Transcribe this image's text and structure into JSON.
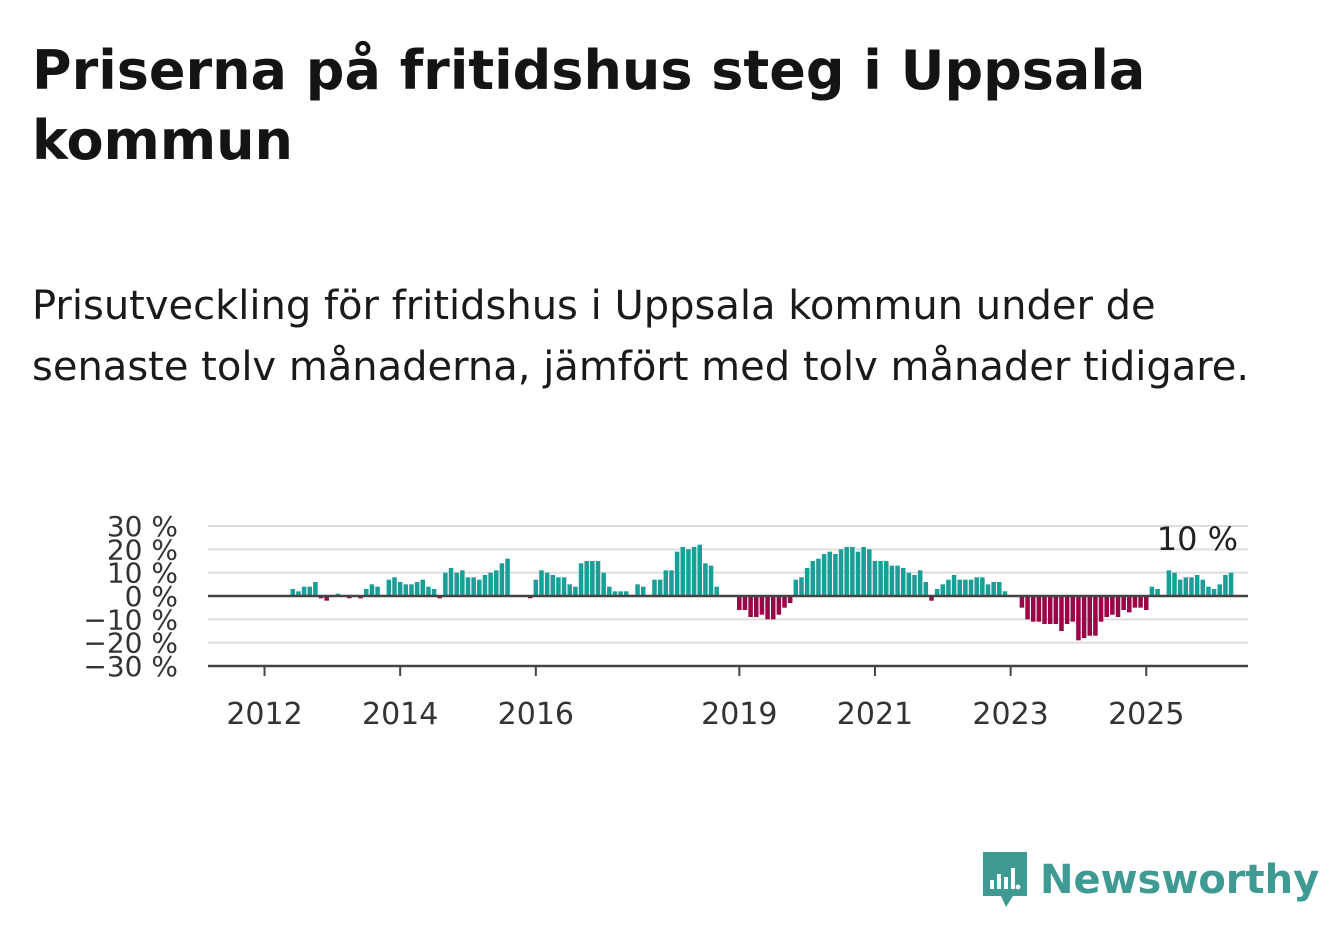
{
  "title": "Priserna på fritidshus steg i Uppsala kommun",
  "subtitle": "Prisutveckling för fritidshus i Uppsala kommun under de senaste tolv månaderna, jämfört med tolv månader tidigare.",
  "brand": {
    "name": "Newsworthy",
    "logo_icon": "bar-chart-speech-bubble-icon"
  },
  "colors": {
    "positive": "#1a9e98",
    "negative": "#990546",
    "gridline": "#dddddd",
    "axis": "#444444",
    "brand": "#3f9a93"
  },
  "chart_data": {
    "type": "bar",
    "title": "Priserna på fritidshus steg i Uppsala kommun",
    "subtitle": "Prisutveckling för fritidshus i Uppsala kommun under de senaste tolv månaderna, jämfört med tolv månader tidigare.",
    "xlabel": "",
    "ylabel": "",
    "ylim": [
      -30,
      30
    ],
    "y_ticks": [
      30,
      20,
      10,
      0,
      -10,
      -20,
      -30
    ],
    "y_tick_labels": [
      "30 %",
      "20 %",
      "10 %",
      "0 %",
      "−10 %",
      "−20 %",
      "−30 %"
    ],
    "x_ticks": [
      {
        "label": "2012",
        "date": "2012-01"
      },
      {
        "label": "2014",
        "date": "2014-01"
      },
      {
        "label": "2016",
        "date": "2016-01"
      },
      {
        "label": "2019",
        "date": "2019-01"
      },
      {
        "label": "2021",
        "date": "2021-01"
      },
      {
        "label": "2023",
        "date": "2023-01"
      },
      {
        "label": "2025",
        "date": "2025-01"
      }
    ],
    "x_range": [
      "2011-03",
      "2026-07"
    ],
    "grid": true,
    "last_value_label": "10 %",
    "first_month": "2012-01",
    "values": [
      null,
      null,
      null,
      null,
      null,
      3,
      2,
      4,
      4,
      6,
      -1,
      -2,
      0,
      1,
      0,
      -1,
      0,
      -1,
      3,
      5,
      4,
      0,
      7,
      8,
      6,
      5,
      5,
      6,
      7,
      4,
      3,
      -1,
      10,
      12,
      10,
      11,
      8,
      8,
      7,
      9,
      10,
      11,
      14,
      16,
      0,
      0,
      0,
      -1,
      7,
      11,
      10,
      9,
      8,
      8,
      5,
      4,
      14,
      15,
      15,
      15,
      10,
      4,
      2,
      2,
      2,
      0,
      5,
      4,
      0,
      7,
      7,
      11,
      11,
      19,
      21,
      20,
      21,
      22,
      14,
      13,
      4,
      0,
      0,
      0,
      -6,
      -6,
      -9,
      -9,
      -8,
      -10,
      -10,
      -8,
      -5,
      -3,
      7,
      8,
      12,
      15,
      16,
      18,
      19,
      18,
      20,
      21,
      21,
      19,
      21,
      20,
      15,
      15,
      15,
      13,
      13,
      12,
      10,
      9,
      11,
      6,
      -2,
      3,
      5,
      7,
      9,
      7,
      7,
      7,
      8,
      8,
      5,
      6,
      6,
      2,
      0,
      0,
      -5,
      -10,
      -11,
      -11,
      -12,
      -12,
      -12,
      -15,
      -12,
      -11,
      -19,
      -18,
      -17,
      -17,
      -11,
      -9,
      -8,
      -9,
      -6,
      -7,
      -5,
      -5,
      -6,
      4,
      3,
      0,
      11,
      10,
      7,
      8,
      8,
      9,
      7,
      4,
      3,
      5,
      9,
      10
    ]
  }
}
